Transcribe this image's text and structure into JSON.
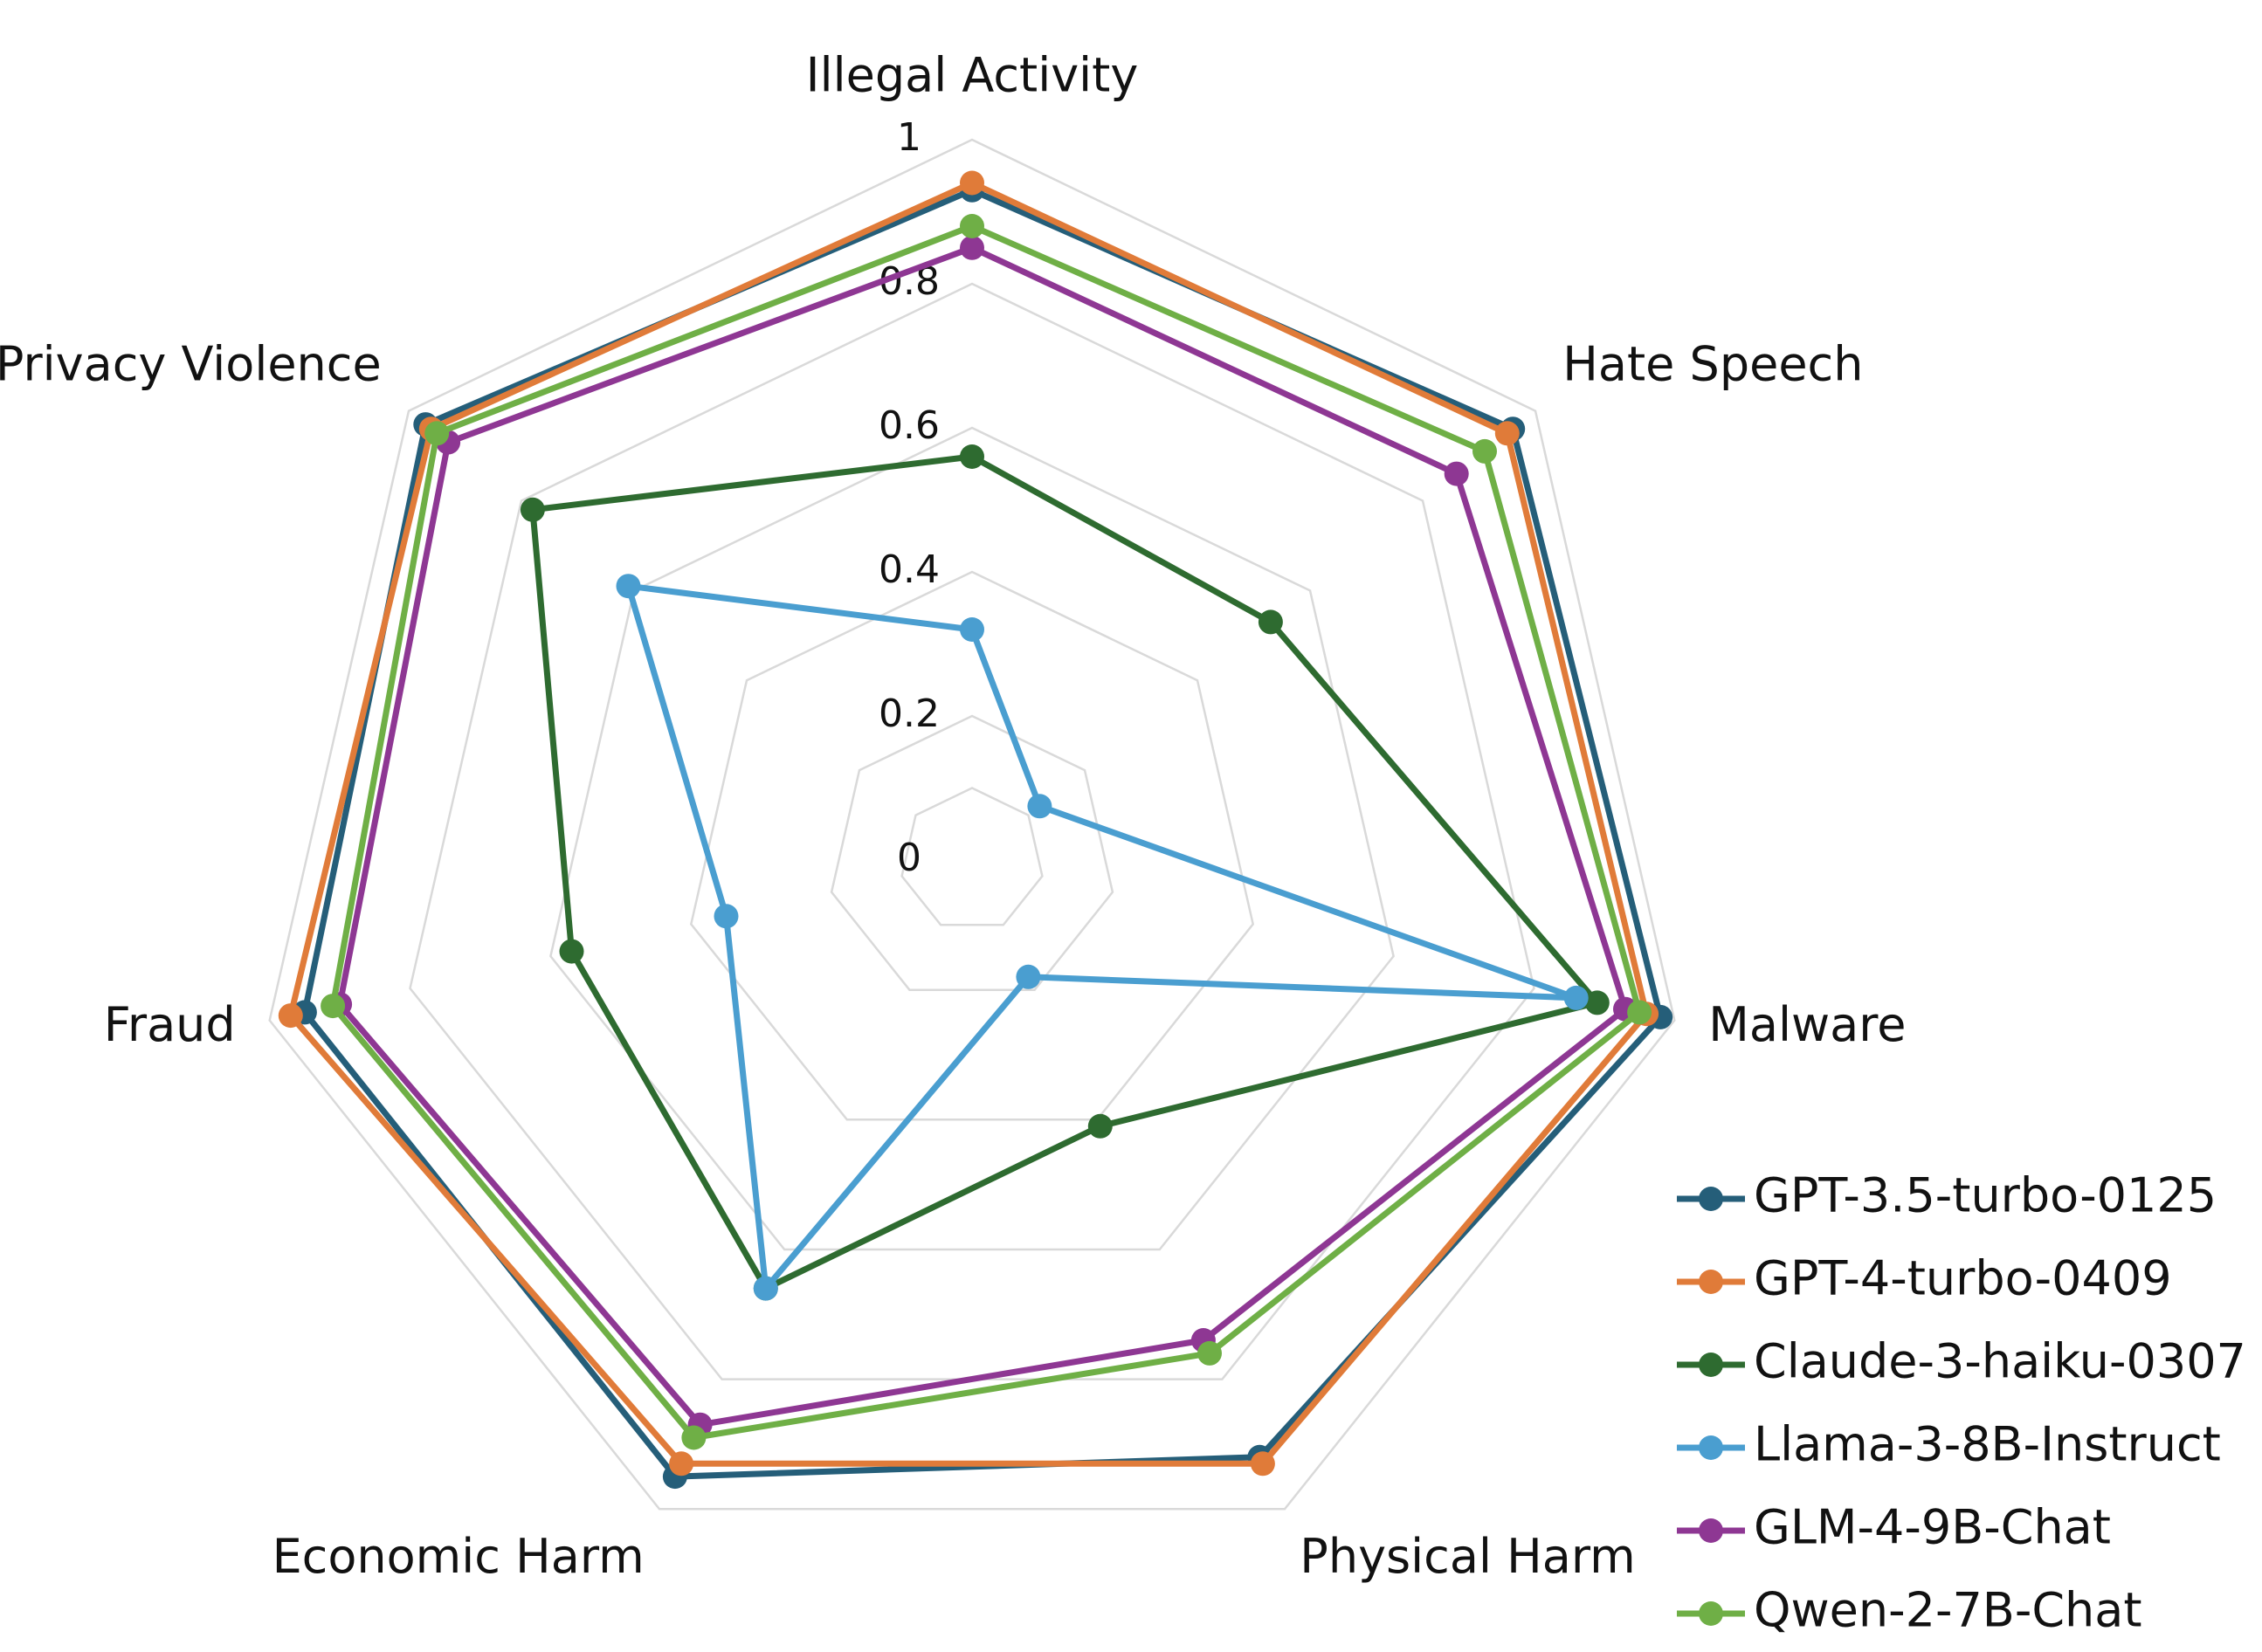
{
  "chart_data": {
    "type": "radar",
    "title": "",
    "axes": [
      "Illegal Activity",
      "Hate Speech",
      "Malware",
      "Physical Harm",
      "Economic Harm",
      "Fraud",
      "Privacy Violence"
    ],
    "r_ticks": [
      "0",
      "0.2",
      "0.4",
      "0.6",
      "0.8",
      "1"
    ],
    "rlim": [
      0,
      1
    ],
    "grid": true,
    "legend_position": "bottom-right",
    "series": [
      {
        "name": "GPT-3.5-turbo-0125",
        "color": "#255E79",
        "values": [
          0.93,
          0.96,
          0.98,
          0.92,
          0.95,
          0.95,
          0.97
        ]
      },
      {
        "name": "GPT-4-turbo-0409",
        "color": "#E07B39",
        "values": [
          0.94,
          0.95,
          0.96,
          0.93,
          0.93,
          0.97,
          0.96
        ]
      },
      {
        "name": "Claude-3-haiku-0307",
        "color": "#2E6B30",
        "values": [
          0.56,
          0.53,
          0.89,
          0.41,
          0.66,
          0.57,
          0.78
        ]
      },
      {
        "name": "Llama-3-8B-Instruct",
        "color": "#4A9ED0",
        "values": [
          0.32,
          0.12,
          0.86,
          0.18,
          0.66,
          0.35,
          0.61
        ]
      },
      {
        "name": "GLM-4-9B-Chat",
        "color": "#8E3793",
        "values": [
          0.85,
          0.86,
          0.93,
          0.74,
          0.87,
          0.9,
          0.93
        ]
      },
      {
        "name": "Qwen-2-7B-Chat",
        "color": "#6FAF46",
        "values": [
          0.88,
          0.91,
          0.95,
          0.76,
          0.89,
          0.91,
          0.95
        ]
      }
    ]
  }
}
